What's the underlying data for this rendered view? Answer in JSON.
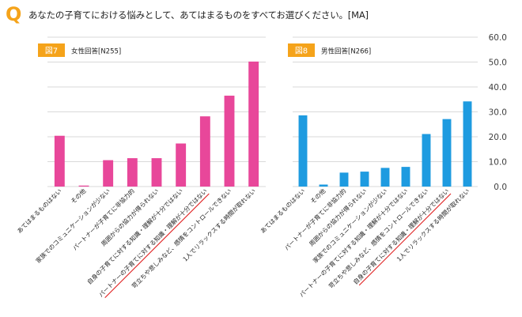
{
  "question": {
    "icon_letter": "Q",
    "text": "あなたの子育てにおける悩みとして、あてはまるものをすべてお選びください。[MA]"
  },
  "colors": {
    "accent": "#F5A31A",
    "female_bar": "#E8479A",
    "male_bar": "#1E9BE0",
    "grid": "#D9D9D9",
    "underline": "#E02020",
    "axis_text": "#404040"
  },
  "chart_data": [
    {
      "type": "bar",
      "panel_badge": "図7",
      "panel_label": "女性回答[N255]",
      "categories": [
        "あてはまるものはない",
        "その他",
        "家族でのコミュニケーションが少ない",
        "パートナーが子育てに非協力的",
        "周囲からの協力が得られない",
        "自身の子育てに対する知識・理解が十分ではない",
        "パートナーの子育てに対する知識・理解が十分ではない",
        "苛立ちや悲しみなど、感情をコントロールできない",
        "1人でリラックスする時間が取れない"
      ],
      "values": [
        20.4,
        0.4,
        10.6,
        11.4,
        11.4,
        17.3,
        28.2,
        36.5,
        50.2
      ],
      "underlined": [
        6
      ],
      "ylim": [
        0,
        60
      ],
      "show_y_tick_labels": false,
      "grid": true
    },
    {
      "type": "bar",
      "panel_badge": "図8",
      "panel_label": "男性回答[N266]",
      "categories": [
        "あてはまるものはない",
        "その他",
        "パートナーが子育てに非協力的",
        "周囲からの協力が得られない",
        "家族でのコミュニケーションが少ない",
        "パートナーの子育てに対する知識・理解が十分ではない",
        "苛立ちや悲しみなど、感情をコントロールできない",
        "自身の子育てに対する知識・理解が十分ではない",
        "1人でリラックスする時間が取れない"
      ],
      "values": [
        28.6,
        0.8,
        5.6,
        6.0,
        7.5,
        7.9,
        21.1,
        27.1,
        34.2
      ],
      "underlined": [
        7
      ],
      "ylim": [
        0,
        60
      ],
      "y_ticks": [
        "0.0",
        "10.0",
        "20.0",
        "30.0",
        "40.0",
        "50.0",
        "60.0"
      ],
      "show_y_tick_labels": true,
      "grid": true
    }
  ]
}
